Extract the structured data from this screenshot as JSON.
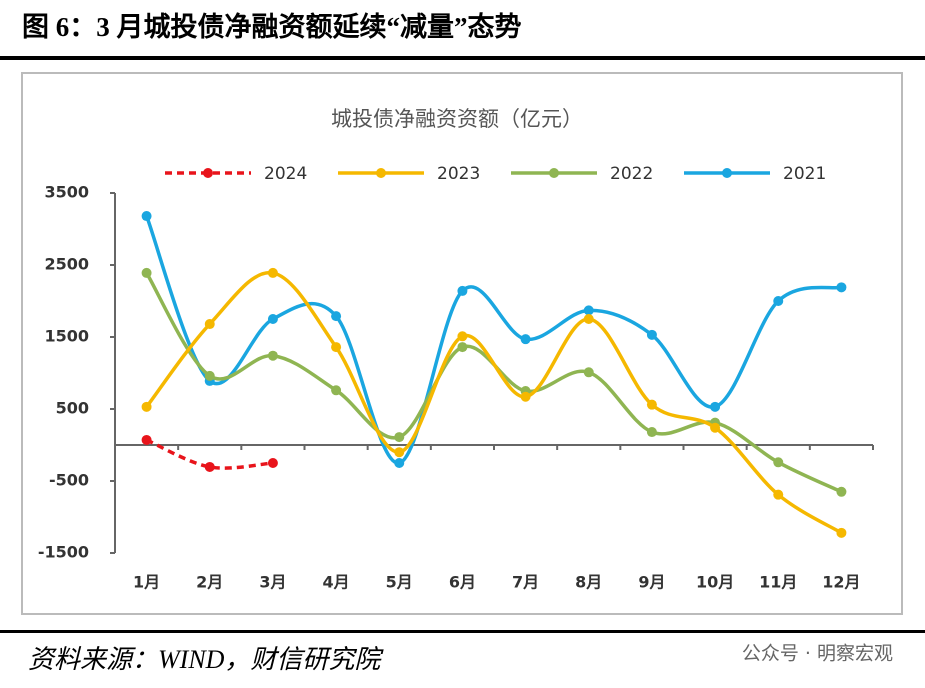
{
  "header": {
    "title": "图 6：3 月城投债净融资额延续“减量”态势"
  },
  "footer": {
    "source": "资料来源：WIND，财信研究院",
    "watermark": "公众号 · 明察宏观"
  },
  "chart_data": {
    "type": "line",
    "title": "城投债净融资资额（亿元）",
    "categories": [
      "1月",
      "2月",
      "3月",
      "4月",
      "5月",
      "6月",
      "7月",
      "8月",
      "9月",
      "10月",
      "11月",
      "12月"
    ],
    "series": [
      {
        "name": "2024",
        "color": "#e8141b",
        "dashed": true,
        "values": [
          70,
          -305,
          -250,
          null,
          null,
          null,
          null,
          null,
          null,
          null,
          null,
          null
        ]
      },
      {
        "name": "2023",
        "color": "#f5b800",
        "dashed": false,
        "values": [
          530,
          1680,
          2390,
          1360,
          -100,
          1510,
          670,
          1750,
          560,
          240,
          -690,
          -1220
        ]
      },
      {
        "name": "2022",
        "color": "#8fb552",
        "dashed": false,
        "values": [
          2390,
          960,
          1240,
          760,
          110,
          1360,
          750,
          1010,
          180,
          310,
          -240,
          -650
        ]
      },
      {
        "name": "2021",
        "color": "#1aa6e0",
        "dashed": false,
        "values": [
          3180,
          890,
          1750,
          1790,
          -250,
          2140,
          1470,
          1870,
          1530,
          530,
          2000,
          2190
        ]
      }
    ],
    "ylim": [
      -1500,
      3500
    ],
    "yticks": [
      -1500,
      -500,
      500,
      1500,
      2500,
      3500
    ],
    "grid": false,
    "legend": "top"
  }
}
